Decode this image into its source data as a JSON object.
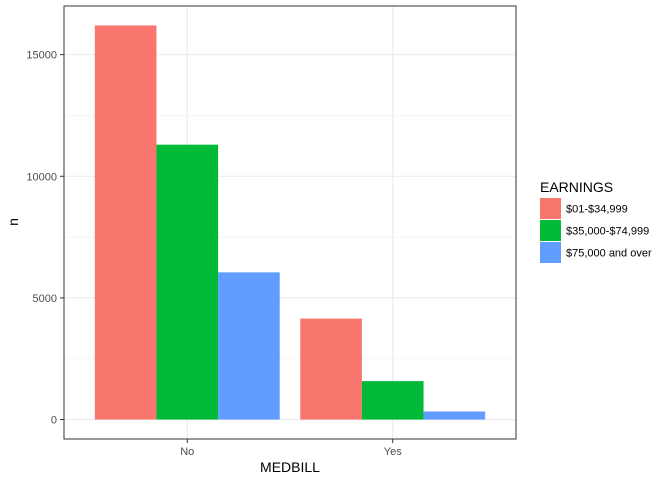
{
  "chart_data": {
    "type": "bar",
    "xlabel": "MEDBILL",
    "ylabel": "n",
    "categories": [
      "No",
      "Yes"
    ],
    "series": [
      {
        "name": "$01-$34,999",
        "color": "#F8766D",
        "values": [
          16200,
          4150
        ]
      },
      {
        "name": "$35,000-$74,999",
        "color": "#00BA38",
        "values": [
          11300,
          1580
        ]
      },
      {
        "name": "$75,000 and over",
        "color": "#619CFF",
        "values": [
          6050,
          330
        ]
      }
    ],
    "ylim": [
      -800,
      17000
    ],
    "yticks": [
      0,
      5000,
      10000,
      15000
    ],
    "ytick_labels": [
      "0",
      "5000",
      "10000",
      "15000"
    ],
    "grid": true,
    "legend": {
      "title": "EARNINGS",
      "placement": "right"
    }
  }
}
